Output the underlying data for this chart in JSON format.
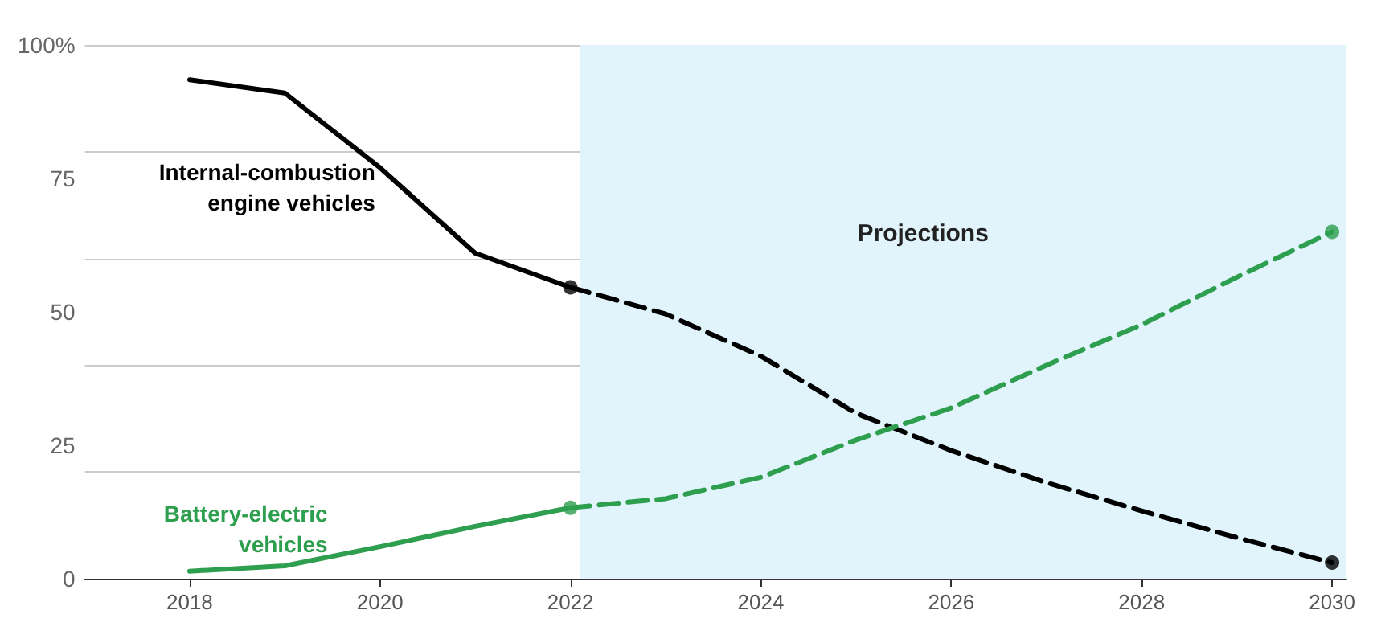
{
  "chart_data": {
    "type": "line",
    "series": [
      {
        "name": "Internal-combustion engine vehicles",
        "color": "#000000",
        "line_style": "solid",
        "x": [
          2018,
          2019,
          2020,
          2021,
          2022
        ],
        "values": [
          93.5,
          91,
          77,
          61,
          54.6
        ]
      },
      {
        "color": "#000000",
        "line_style": "dashed",
        "x": [
          2022,
          2023,
          2024,
          2025,
          2026,
          2027,
          2028,
          2029,
          2030
        ],
        "values": [
          54.6,
          49.6,
          41.7,
          31,
          24,
          18,
          12.7,
          7.7,
          3
        ]
      },
      {
        "type": "scatter",
        "color": "#000000",
        "marker": "circle",
        "x": [
          2022,
          2030
        ],
        "values": [
          54.6,
          3
        ]
      },
      {
        "name": "Battery-electric vehicles",
        "color": "#2e9e4f",
        "line_style": "solid",
        "x": [
          2018,
          2019,
          2020,
          2021,
          2022
        ],
        "values": [
          1.4,
          2.4,
          6,
          9.8,
          13.3
        ]
      },
      {
        "color": "#2e9e4f",
        "line_style": "dashed",
        "x": [
          2022,
          2023,
          2024,
          2025,
          2026,
          2027,
          2028,
          2029,
          2030
        ],
        "values": [
          13.3,
          15,
          19,
          26,
          32,
          40,
          47.6,
          56.5,
          65
        ]
      },
      {
        "type": "scatter",
        "color": "#2e9e4f",
        "marker": "circle",
        "x": [
          2022,
          2030
        ],
        "values": [
          13.3,
          65
        ]
      }
    ],
    "xlim": [
      2016.9,
      2030.15
    ],
    "xticks": [
      2018,
      2020,
      2022,
      2024,
      2026,
      2028,
      2030
    ],
    "ylim": [
      0,
      100
    ],
    "yticks": [
      0,
      25,
      50,
      75,
      {
        "value": 100,
        "label": "100%"
      }
    ],
    "bands": [
      {
        "axis": "x",
        "from": 2022.1,
        "to": 2030.15,
        "label": "Projections",
        "color": "#e1f4fc"
      }
    ],
    "grid": "y",
    "legend": false,
    "marker": "none"
  }
}
